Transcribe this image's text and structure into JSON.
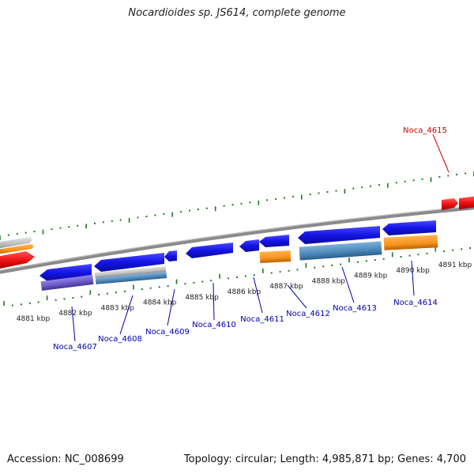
{
  "title": "Nocardioides sp. JS614, complete genome",
  "accession_text": "Accession: NC_008699",
  "topology_text": "Topology: circular; Length: 4,985,871 bp; Genes: 4,700",
  "colors": {
    "backbone": "#8a8a8a",
    "tick": "#1f7a1f",
    "label_forward": "#cc0000",
    "label_reverse": "#0000aa",
    "gene_blue": "#1414e6",
    "gene_red": "#ee1111",
    "gene_orange": "#f7931e",
    "gene_grey": "#bdbdbd",
    "gene_purple": "#6a55c8",
    "gene_steel": "#4a86b8"
  },
  "scale": {
    "labels": [
      "4881 kbp",
      "4882 kbp",
      "4883 kbp",
      "4884 kbp",
      "4885 kbp",
      "4886 kbp",
      "4887 kbp",
      "4888 kbp",
      "4889 kbp",
      "4890 kbp",
      "4891 kbp"
    ]
  },
  "genes": [
    {
      "label": "Noca_4607",
      "strand": "reverse"
    },
    {
      "label": "Noca_4608",
      "strand": "reverse"
    },
    {
      "label": "Noca_4609",
      "strand": "reverse"
    },
    {
      "label": "Noca_4610",
      "strand": "reverse"
    },
    {
      "label": "Noca_4611",
      "strand": "reverse"
    },
    {
      "label": "Noca_4612",
      "strand": "reverse"
    },
    {
      "label": "Noca_4613",
      "strand": "reverse"
    },
    {
      "label": "Noca_4614",
      "strand": "reverse"
    },
    {
      "label": "Noca_4615",
      "strand": "forward"
    }
  ]
}
